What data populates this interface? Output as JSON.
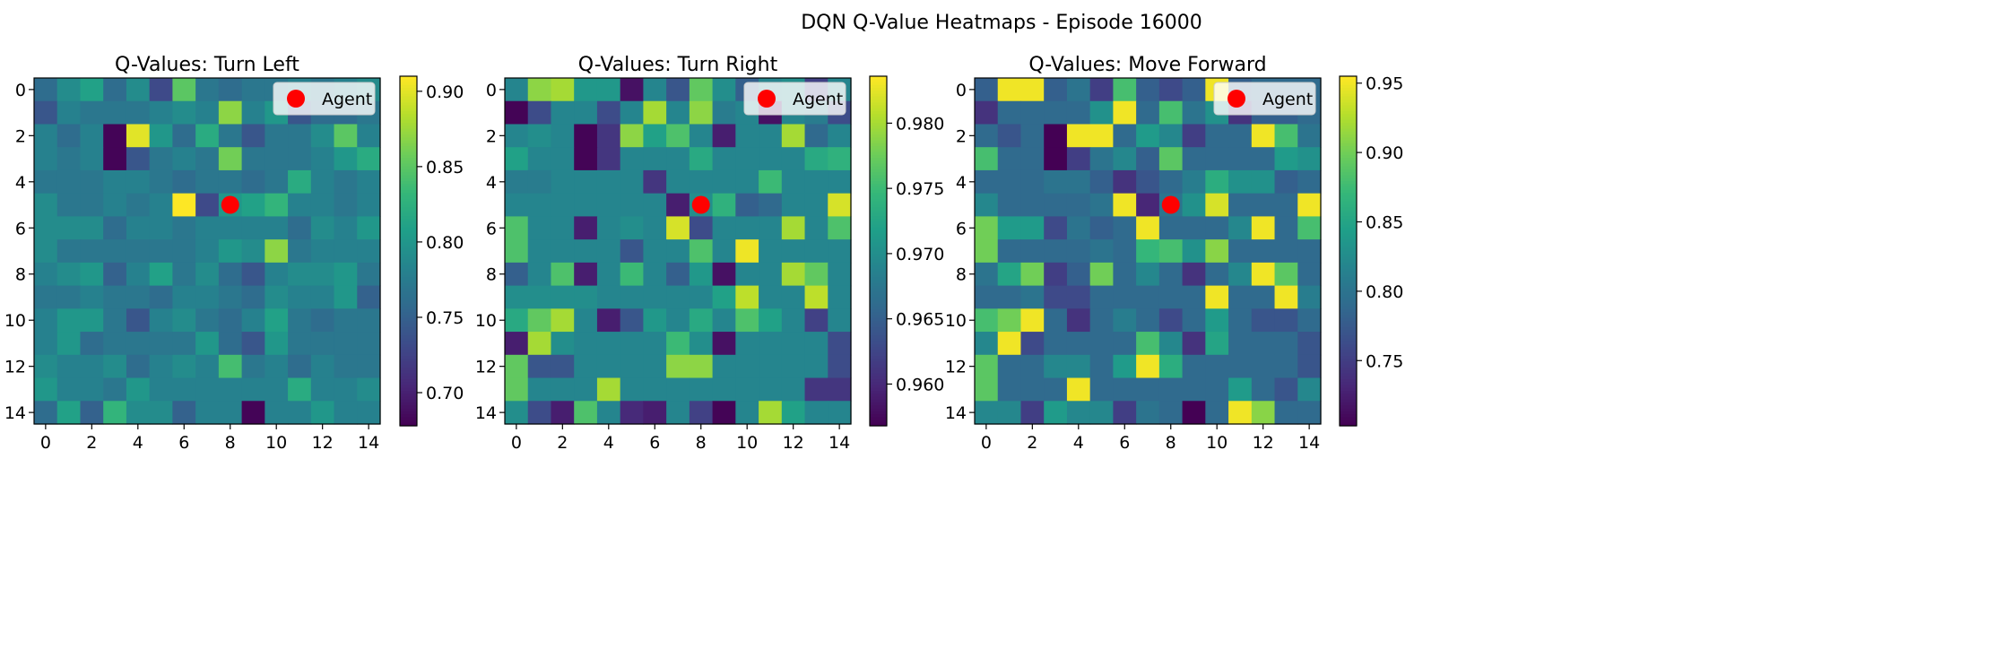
{
  "suptitle": "DQN Q-Value Heatmaps - Episode 16000",
  "chart_data": [
    {
      "type": "heatmap",
      "title": "Q-Values: Turn Left",
      "xlabel": "",
      "ylabel": "",
      "x_range": [
        -0.5,
        14.5
      ],
      "y_range": [
        14.5,
        -0.5
      ],
      "x_ticks": [
        0,
        2,
        4,
        6,
        8,
        10,
        12,
        14
      ],
      "y_ticks": [
        0,
        2,
        4,
        6,
        8,
        10,
        12,
        14
      ],
      "colormap": "viridis",
      "vmin": 0.678,
      "vmax": 0.91,
      "colorbar_ticks": [
        "0.70",
        "0.75",
        "0.80",
        "0.85",
        "0.90"
      ],
      "colorbar_tick_values": [
        0.7,
        0.75,
        0.8,
        0.85,
        0.9
      ],
      "legend": {
        "label": "Agent",
        "position": "upper right",
        "marker_color": "#ff0000"
      },
      "agent": {
        "x": 8,
        "y": 5
      },
      "z": [
        [
          0.76,
          0.79,
          0.81,
          0.76,
          0.79,
          0.73,
          0.85,
          0.77,
          0.76,
          0.77,
          0.77,
          0.78,
          0.77,
          0.78,
          0.79
        ],
        [
          0.74,
          0.78,
          0.77,
          0.77,
          0.77,
          0.78,
          0.79,
          0.78,
          0.87,
          0.78,
          0.8,
          0.74,
          0.76,
          0.76,
          0.77
        ],
        [
          0.78,
          0.76,
          0.78,
          0.68,
          0.9,
          0.8,
          0.76,
          0.82,
          0.77,
          0.74,
          0.77,
          0.77,
          0.79,
          0.85,
          0.78
        ],
        [
          0.78,
          0.77,
          0.78,
          0.68,
          0.74,
          0.77,
          0.78,
          0.77,
          0.86,
          0.77,
          0.77,
          0.77,
          0.78,
          0.8,
          0.82
        ],
        [
          0.77,
          0.77,
          0.77,
          0.78,
          0.78,
          0.77,
          0.76,
          0.77,
          0.77,
          0.76,
          0.77,
          0.82,
          0.78,
          0.77,
          0.78
        ],
        [
          0.79,
          0.77,
          0.77,
          0.78,
          0.77,
          0.78,
          0.91,
          0.73,
          0.8,
          0.81,
          0.83,
          0.78,
          0.78,
          0.77,
          0.78
        ],
        [
          0.79,
          0.79,
          0.79,
          0.76,
          0.78,
          0.78,
          0.77,
          0.78,
          0.78,
          0.78,
          0.78,
          0.76,
          0.79,
          0.78,
          0.8
        ],
        [
          0.79,
          0.77,
          0.77,
          0.77,
          0.77,
          0.77,
          0.77,
          0.78,
          0.8,
          0.79,
          0.87,
          0.77,
          0.78,
          0.78,
          0.78
        ],
        [
          0.78,
          0.79,
          0.8,
          0.75,
          0.78,
          0.81,
          0.77,
          0.79,
          0.76,
          0.74,
          0.78,
          0.79,
          0.79,
          0.8,
          0.77
        ],
        [
          0.77,
          0.77,
          0.78,
          0.77,
          0.77,
          0.76,
          0.78,
          0.78,
          0.77,
          0.76,
          0.79,
          0.78,
          0.78,
          0.8,
          0.75
        ],
        [
          0.78,
          0.8,
          0.8,
          0.77,
          0.74,
          0.78,
          0.79,
          0.77,
          0.76,
          0.78,
          0.81,
          0.77,
          0.76,
          0.77,
          0.77
        ],
        [
          0.78,
          0.8,
          0.76,
          0.77,
          0.77,
          0.77,
          0.77,
          0.8,
          0.76,
          0.74,
          0.8,
          0.77,
          0.77,
          0.77,
          0.77
        ],
        [
          0.79,
          0.78,
          0.78,
          0.79,
          0.76,
          0.78,
          0.79,
          0.78,
          0.84,
          0.77,
          0.78,
          0.76,
          0.78,
          0.77,
          0.77
        ],
        [
          0.8,
          0.78,
          0.78,
          0.77,
          0.8,
          0.78,
          0.78,
          0.78,
          0.78,
          0.78,
          0.78,
          0.82,
          0.78,
          0.78,
          0.79
        ],
        [
          0.76,
          0.81,
          0.75,
          0.83,
          0.79,
          0.79,
          0.75,
          0.78,
          0.78,
          0.68,
          0.78,
          0.78,
          0.8,
          0.78,
          0.78
        ]
      ]
    },
    {
      "type": "heatmap",
      "title": "Q-Values: Turn Right",
      "xlabel": "",
      "ylabel": "",
      "x_range": [
        -0.5,
        14.5
      ],
      "y_range": [
        14.5,
        -0.5
      ],
      "x_ticks": [
        0,
        2,
        4,
        6,
        8,
        10,
        12,
        14
      ],
      "y_ticks": [
        0,
        2,
        4,
        6,
        8,
        10,
        12,
        14
      ],
      "colormap": "viridis",
      "vmin": 0.9568,
      "vmax": 0.9836,
      "colorbar_ticks": [
        "0.960",
        "0.965",
        "0.970",
        "0.975",
        "0.980"
      ],
      "colorbar_tick_values": [
        0.96,
        0.965,
        0.97,
        0.975,
        0.98
      ],
      "legend": {
        "label": "Agent",
        "position": "upper right",
        "marker_color": "#ff0000"
      },
      "agent": {
        "x": 8,
        "y": 5
      },
      "z": [
        [
          0.969,
          0.979,
          0.98,
          0.971,
          0.971,
          0.958,
          0.969,
          0.964,
          0.977,
          0.97,
          0.965,
          0.969,
          0.97,
          0.962,
          0.969
        ],
        [
          0.957,
          0.963,
          0.969,
          0.969,
          0.963,
          0.969,
          0.98,
          0.969,
          0.979,
          0.968,
          0.969,
          0.958,
          0.969,
          0.968,
          0.963
        ],
        [
          0.969,
          0.97,
          0.969,
          0.957,
          0.961,
          0.979,
          0.972,
          0.976,
          0.969,
          0.959,
          0.969,
          0.969,
          0.98,
          0.966,
          0.969
        ],
        [
          0.972,
          0.969,
          0.969,
          0.957,
          0.961,
          0.969,
          0.969,
          0.969,
          0.973,
          0.969,
          0.969,
          0.969,
          0.969,
          0.973,
          0.974
        ],
        [
          0.968,
          0.968,
          0.969,
          0.969,
          0.969,
          0.969,
          0.961,
          0.969,
          0.969,
          0.969,
          0.969,
          0.975,
          0.969,
          0.969,
          0.969
        ],
        [
          0.969,
          0.969,
          0.969,
          0.969,
          0.969,
          0.969,
          0.969,
          0.959,
          0.97,
          0.974,
          0.965,
          0.966,
          0.969,
          0.969,
          0.982
        ],
        [
          0.976,
          0.969,
          0.969,
          0.959,
          0.969,
          0.97,
          0.969,
          0.982,
          0.963,
          0.969,
          0.969,
          0.969,
          0.98,
          0.969,
          0.976
        ],
        [
          0.976,
          0.969,
          0.969,
          0.969,
          0.969,
          0.964,
          0.969,
          0.969,
          0.976,
          0.969,
          0.983,
          0.969,
          0.969,
          0.969,
          0.969
        ],
        [
          0.965,
          0.969,
          0.976,
          0.959,
          0.969,
          0.975,
          0.969,
          0.965,
          0.971,
          0.958,
          0.969,
          0.969,
          0.98,
          0.977,
          0.969
        ],
        [
          0.97,
          0.97,
          0.97,
          0.97,
          0.969,
          0.969,
          0.969,
          0.969,
          0.969,
          0.972,
          0.981,
          0.969,
          0.969,
          0.981,
          0.969
        ],
        [
          0.973,
          0.977,
          0.98,
          0.969,
          0.959,
          0.964,
          0.971,
          0.969,
          0.973,
          0.969,
          0.976,
          0.972,
          0.969,
          0.962,
          0.969
        ],
        [
          0.959,
          0.98,
          0.97,
          0.969,
          0.969,
          0.969,
          0.969,
          0.975,
          0.97,
          0.958,
          0.969,
          0.969,
          0.969,
          0.969,
          0.963
        ],
        [
          0.977,
          0.964,
          0.964,
          0.969,
          0.969,
          0.969,
          0.969,
          0.979,
          0.979,
          0.969,
          0.969,
          0.969,
          0.969,
          0.969,
          0.963
        ],
        [
          0.977,
          0.969,
          0.969,
          0.969,
          0.98,
          0.969,
          0.969,
          0.969,
          0.969,
          0.969,
          0.969,
          0.969,
          0.969,
          0.961,
          0.961
        ],
        [
          0.97,
          0.963,
          0.959,
          0.976,
          0.969,
          0.96,
          0.959,
          0.969,
          0.962,
          0.957,
          0.969,
          0.98,
          0.972,
          0.969,
          0.969
        ]
      ]
    },
    {
      "type": "heatmap",
      "title": "Q-Values: Move Forward",
      "xlabel": "",
      "ylabel": "",
      "x_range": [
        -0.5,
        14.5
      ],
      "y_range": [
        14.5,
        -0.5
      ],
      "x_ticks": [
        0,
        2,
        4,
        6,
        8,
        10,
        12,
        14
      ],
      "y_ticks": [
        0,
        2,
        4,
        6,
        8,
        10,
        12,
        14
      ],
      "colormap": "viridis",
      "vmin": 0.703,
      "vmax": 0.955,
      "colorbar_ticks": [
        "0.75",
        "0.80",
        "0.85",
        "0.90",
        "0.95"
      ],
      "colorbar_tick_values": [
        0.75,
        0.8,
        0.85,
        0.9,
        0.95
      ],
      "legend": {
        "label": "Agent",
        "position": "upper right",
        "marker_color": "#ff0000"
      },
      "agent": {
        "x": 8,
        "y": 5
      },
      "z": [
        [
          0.78,
          0.95,
          0.95,
          0.78,
          0.8,
          0.75,
          0.88,
          0.78,
          0.76,
          0.78,
          0.95,
          0.78,
          0.79,
          0.79,
          0.79
        ],
        [
          0.74,
          0.79,
          0.79,
          0.79,
          0.79,
          0.83,
          0.95,
          0.79,
          0.88,
          0.8,
          0.83,
          0.74,
          0.78,
          0.78,
          0.79
        ],
        [
          0.79,
          0.77,
          0.79,
          0.7,
          0.95,
          0.95,
          0.79,
          0.84,
          0.82,
          0.75,
          0.79,
          0.79,
          0.95,
          0.88,
          0.8
        ],
        [
          0.88,
          0.79,
          0.79,
          0.7,
          0.75,
          0.8,
          0.82,
          0.78,
          0.89,
          0.79,
          0.79,
          0.79,
          0.79,
          0.84,
          0.83
        ],
        [
          0.79,
          0.79,
          0.79,
          0.8,
          0.8,
          0.78,
          0.74,
          0.77,
          0.79,
          0.81,
          0.86,
          0.83,
          0.83,
          0.78,
          0.79
        ],
        [
          0.82,
          0.79,
          0.79,
          0.79,
          0.79,
          0.8,
          0.95,
          0.73,
          0.8,
          0.83,
          0.94,
          0.79,
          0.79,
          0.79,
          0.95
        ],
        [
          0.9,
          0.84,
          0.84,
          0.76,
          0.8,
          0.78,
          0.79,
          0.95,
          0.79,
          0.79,
          0.79,
          0.82,
          0.95,
          0.79,
          0.88
        ],
        [
          0.9,
          0.79,
          0.79,
          0.79,
          0.79,
          0.8,
          0.79,
          0.87,
          0.88,
          0.83,
          0.91,
          0.79,
          0.79,
          0.79,
          0.79
        ],
        [
          0.8,
          0.85,
          0.9,
          0.75,
          0.78,
          0.9,
          0.79,
          0.82,
          0.79,
          0.74,
          0.79,
          0.82,
          0.95,
          0.89,
          0.79
        ],
        [
          0.79,
          0.79,
          0.8,
          0.76,
          0.76,
          0.79,
          0.79,
          0.79,
          0.79,
          0.79,
          0.95,
          0.79,
          0.79,
          0.95,
          0.81
        ],
        [
          0.88,
          0.9,
          0.95,
          0.79,
          0.74,
          0.79,
          0.81,
          0.79,
          0.76,
          0.79,
          0.84,
          0.79,
          0.77,
          0.77,
          0.79
        ],
        [
          0.82,
          0.95,
          0.76,
          0.79,
          0.79,
          0.79,
          0.79,
          0.88,
          0.82,
          0.74,
          0.85,
          0.79,
          0.79,
          0.79,
          0.77
        ],
        [
          0.89,
          0.79,
          0.79,
          0.82,
          0.82,
          0.79,
          0.84,
          0.95,
          0.86,
          0.79,
          0.79,
          0.79,
          0.79,
          0.79,
          0.77
        ],
        [
          0.89,
          0.79,
          0.79,
          0.79,
          0.95,
          0.79,
          0.79,
          0.79,
          0.79,
          0.79,
          0.79,
          0.84,
          0.79,
          0.77,
          0.82
        ],
        [
          0.82,
          0.82,
          0.75,
          0.84,
          0.82,
          0.82,
          0.75,
          0.8,
          0.79,
          0.7,
          0.79,
          0.95,
          0.91,
          0.79,
          0.79
        ]
      ]
    }
  ]
}
